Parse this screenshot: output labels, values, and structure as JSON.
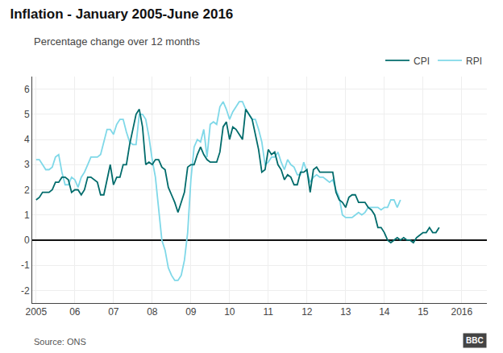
{
  "chart_data": {
    "type": "line",
    "title": "Inflation - January 2005-June 2016",
    "subtitle": "Percentage change over 12 months",
    "annotations": [
      "Source: ONS",
      "BBC"
    ],
    "x": [
      2005,
      2005.0833333333333,
      2005.1666666666667,
      2005.25,
      2005.3333333333333,
      2005.4166666666667,
      2005.5,
      2005.5833333333333,
      2005.6666666666667,
      2005.75,
      2005.8333333333333,
      2005.9166666666667,
      2006,
      2006.0833333333333,
      2006.1666666666667,
      2006.25,
      2006.3333333333333,
      2006.4166666666667,
      2006.5,
      2006.5833333333333,
      2006.6666666666667,
      2006.75,
      2006.8333333333333,
      2006.9166666666667,
      2007,
      2007.0833333333333,
      2007.1666666666667,
      2007.25,
      2007.3333333333333,
      2007.4166666666667,
      2007.5,
      2007.5833333333333,
      2007.6666666666667,
      2007.75,
      2007.8333333333333,
      2007.9166666666667,
      2008,
      2008.0833333333333,
      2008.1666666666667,
      2008.25,
      2008.3333333333333,
      2008.4166666666667,
      2008.5,
      2008.5833333333333,
      2008.6666666666667,
      2008.75,
      2008.8333333333333,
      2008.9166666666667,
      2009,
      2009.0833333333333,
      2009.1666666666667,
      2009.25,
      2009.3333333333333,
      2009.4166666666667,
      2009.5,
      2009.5833333333333,
      2009.6666666666667,
      2009.75,
      2009.8333333333333,
      2009.9166666666667,
      2010,
      2010.0833333333333,
      2010.1666666666667,
      2010.25,
      2010.3333333333333,
      2010.4166666666667,
      2010.5,
      2010.5833333333333,
      2010.6666666666667,
      2010.75,
      2010.8333333333333,
      2010.9166666666667,
      2011,
      2011.0833333333333,
      2011.1666666666667,
      2011.25,
      2011.3333333333333,
      2011.4166666666667,
      2011.5,
      2011.5833333333333,
      2011.6666666666667,
      2011.75,
      2011.8333333333333,
      2011.9166666666667,
      2012,
      2012.0833333333333,
      2012.1666666666667,
      2012.25,
      2012.3333333333333,
      2012.4166666666667,
      2012.5,
      2012.5833333333333,
      2012.6666666666667,
      2012.75,
      2012.8333333333333,
      2012.9166666666667,
      2013,
      2013.0833333333333,
      2013.1666666666667,
      2013.25,
      2013.3333333333333,
      2013.4166666666667,
      2013.5,
      2013.5833333333333,
      2013.6666666666667,
      2013.75,
      2013.8333333333333,
      2013.9166666666667,
      2014,
      2014.0833333333333,
      2014.1666666666667,
      2014.25,
      2014.3333333333333,
      2014.4166666666667,
      2014.5,
      2014.5833333333333,
      2014.6666666666667,
      2014.75,
      2014.8333333333333,
      2014.9166666666667,
      2015,
      2015.0833333333333,
      2015.1666666666667,
      2015.25,
      2015.3333333333333,
      2015.4166666666667
    ],
    "series": [
      {
        "name": "CPI",
        "color": "#006b6b",
        "values": [
          1.6,
          1.7,
          1.9,
          1.9,
          1.9,
          2.0,
          2.3,
          2.3,
          2.5,
          2.5,
          2.4,
          1.9,
          2.0,
          2.0,
          1.8,
          2.0,
          2.5,
          2.5,
          2.4,
          2.3,
          1.8,
          1.8,
          2.4,
          3.0,
          2.2,
          2.5,
          2.5,
          3.0,
          3.0,
          3.8,
          4.4,
          5.0,
          5.2,
          4.5,
          3.0,
          3.1,
          3.0,
          3.2,
          3.2,
          2.9,
          2.8,
          2.1,
          1.8,
          1.5,
          1.1,
          1.5,
          1.9,
          2.9,
          3.0,
          3.0,
          3.4,
          3.7,
          3.4,
          3.2,
          3.1,
          3.1,
          3.1,
          3.5,
          4.5,
          4.7,
          4.0,
          4.5,
          4.4,
          4.2,
          4.0,
          5.2,
          5.0,
          4.8,
          4.2,
          3.6,
          2.7,
          2.8,
          3.6,
          3.4,
          3.5,
          3.0,
          2.8,
          2.4,
          2.6,
          2.5,
          2.2,
          2.2,
          2.7,
          2.7,
          2.8,
          1.9,
          2.8,
          2.9,
          2.7,
          2.7,
          2.7,
          2.7,
          2.7,
          1.9,
          1.6,
          1.5,
          1.3,
          1.7,
          1.8,
          1.8,
          1.5,
          1.5,
          1.5,
          1.3,
          1.2,
          1.0,
          0.5,
          0.5,
          0.3,
          0.0,
          -0.1,
          0.0,
          0.1,
          0.0,
          0.1,
          0.0,
          0.0,
          -0.1,
          0.1,
          0.2,
          0.3,
          0.3,
          0.5,
          0.3,
          0.3,
          0.5
        ]
      },
      {
        "name": "RPI",
        "color": "#7fd8e8",
        "values": [
          3.2,
          3.2,
          3.0,
          2.8,
          2.8,
          2.9,
          3.3,
          3.4,
          2.7,
          2.2,
          2.2,
          2.5,
          2.4,
          2.1,
          2.5,
          2.7,
          3.0,
          3.3,
          3.3,
          3.3,
          3.4,
          3.9,
          4.4,
          4.4,
          4.2,
          4.6,
          4.8,
          4.8,
          4.3,
          3.9,
          3.8,
          3.8,
          5.0,
          5.0,
          4.8,
          4.1,
          3.2,
          2.5,
          1.2,
          0.0,
          -0.4,
          -1.1,
          -1.4,
          -1.6,
          -1.6,
          -1.4,
          -0.8,
          0.3,
          2.4,
          3.7,
          4.0,
          3.9,
          4.4,
          3.3,
          4.6,
          4.7,
          4.6,
          5.3,
          5.5,
          5.2,
          4.8,
          5.1,
          5.3,
          5.5,
          5.5,
          5.2,
          5.0,
          4.8,
          4.8,
          4.4,
          3.9,
          3.0,
          3.1,
          3.3,
          3.3,
          3.5,
          3.1,
          2.8,
          3.2,
          3.0,
          2.9,
          2.6,
          2.6,
          3.1,
          2.7,
          2.3,
          2.5,
          2.6,
          2.5,
          2.5,
          2.4,
          2.3,
          2.4,
          2.0,
          1.7,
          1.0,
          0.9,
          0.9,
          0.9,
          1.0,
          1.1,
          1.0,
          1.1,
          1.3,
          1.3,
          1.3,
          1.3,
          1.2,
          1.3,
          1.3,
          1.6,
          1.6,
          1.3,
          1.6,
          null,
          null,
          null,
          null,
          null,
          null,
          null,
          null,
          null,
          null,
          null,
          null
        ]
      }
    ],
    "xlim": [
      2004.9,
      2016.65
    ],
    "xticks": [
      2005,
      {
        "value": 2006,
        "label": "06"
      },
      {
        "value": 2007,
        "label": "07"
      },
      {
        "value": 2008,
        "label": "08"
      },
      {
        "value": 2009,
        "label": "09"
      },
      {
        "value": 2010,
        "label": "10"
      },
      {
        "value": 2011,
        "label": "11"
      },
      {
        "value": 2012,
        "label": "12"
      },
      {
        "value": 2013,
        "label": "13"
      },
      {
        "value": 2014,
        "label": "14"
      },
      {
        "value": 2015,
        "label": "15"
      },
      2016
    ],
    "ylim": [
      -2.5,
      6.5
    ],
    "yticks": [
      -2,
      -1,
      0,
      1,
      2,
      3,
      4,
      5,
      6
    ],
    "grid": true,
    "legend": "upper right"
  }
}
